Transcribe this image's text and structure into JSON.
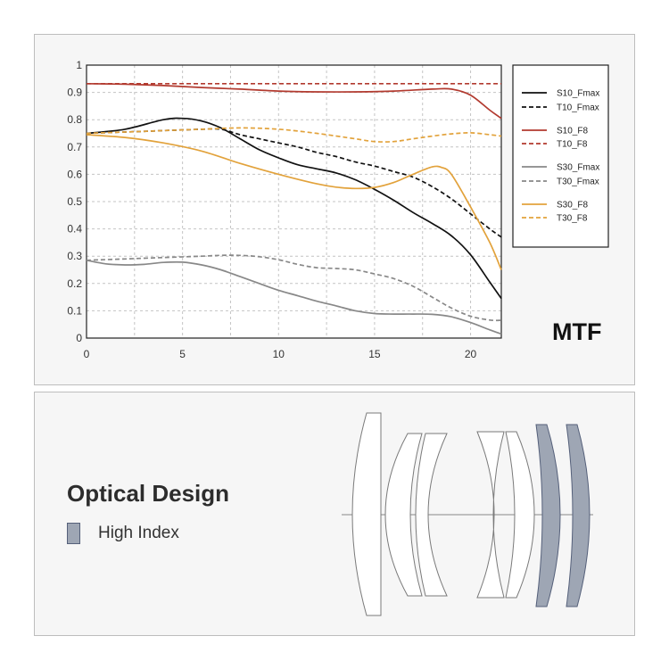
{
  "chart_data": {
    "type": "line",
    "title": "MTF",
    "xlabel": "",
    "ylabel": "",
    "xlim": [
      0,
      21.6
    ],
    "ylim": [
      0,
      1
    ],
    "x_ticks": [
      "0",
      "5",
      "10",
      "15",
      "20"
    ],
    "y_ticks": [
      "0",
      "0.1",
      "0.2",
      "0.3",
      "0.4",
      "0.5",
      "0.6",
      "0.7",
      "0.8",
      "0.9",
      "1"
    ],
    "grid": true,
    "legend_position": "top-right",
    "series": [
      {
        "name": "S10_Fmax",
        "color": "#111111",
        "dash": false,
        "points": [
          [
            0,
            0.75
          ],
          [
            2,
            0.765
          ],
          [
            4,
            0.8
          ],
          [
            5,
            0.805
          ],
          [
            6,
            0.795
          ],
          [
            7,
            0.77
          ],
          [
            8,
            0.73
          ],
          [
            9,
            0.69
          ],
          [
            10,
            0.66
          ],
          [
            11,
            0.635
          ],
          [
            12,
            0.62
          ],
          [
            13,
            0.605
          ],
          [
            14,
            0.58
          ],
          [
            15,
            0.545
          ],
          [
            16,
            0.505
          ],
          [
            17,
            0.46
          ],
          [
            18,
            0.42
          ],
          [
            19,
            0.375
          ],
          [
            20,
            0.305
          ],
          [
            21,
            0.205
          ],
          [
            21.6,
            0.145
          ]
        ]
      },
      {
        "name": "T10_Fmax",
        "color": "#111111",
        "dash": true,
        "points": [
          [
            0,
            0.75
          ],
          [
            2,
            0.755
          ],
          [
            4,
            0.76
          ],
          [
            6,
            0.765
          ],
          [
            7,
            0.765
          ],
          [
            8,
            0.745
          ],
          [
            9,
            0.73
          ],
          [
            10,
            0.715
          ],
          [
            11,
            0.7
          ],
          [
            12,
            0.68
          ],
          [
            13,
            0.665
          ],
          [
            14,
            0.645
          ],
          [
            15,
            0.63
          ],
          [
            16,
            0.61
          ],
          [
            17,
            0.59
          ],
          [
            18,
            0.555
          ],
          [
            19,
            0.51
          ],
          [
            20,
            0.455
          ],
          [
            21,
            0.4
          ],
          [
            21.6,
            0.37
          ]
        ]
      },
      {
        "name": "S10_F8",
        "color": "#b23a2f",
        "dash": false,
        "points": [
          [
            0,
            0.932
          ],
          [
            2,
            0.93
          ],
          [
            4,
            0.925
          ],
          [
            6,
            0.918
          ],
          [
            8,
            0.912
          ],
          [
            10,
            0.905
          ],
          [
            12,
            0.902
          ],
          [
            14,
            0.902
          ],
          [
            16,
            0.905
          ],
          [
            18,
            0.912
          ],
          [
            19,
            0.912
          ],
          [
            20,
            0.89
          ],
          [
            21,
            0.835
          ],
          [
            21.6,
            0.805
          ]
        ]
      },
      {
        "name": "T10_F8",
        "color": "#b23a2f",
        "dash": true,
        "points": [
          [
            0,
            0.932
          ],
          [
            5,
            0.932
          ],
          [
            10,
            0.932
          ],
          [
            15,
            0.932
          ],
          [
            20,
            0.932
          ],
          [
            21.6,
            0.932
          ]
        ]
      },
      {
        "name": "S30_Fmax",
        "color": "#888888",
        "dash": false,
        "points": [
          [
            0,
            0.285
          ],
          [
            1,
            0.272
          ],
          [
            2,
            0.268
          ],
          [
            3,
            0.27
          ],
          [
            4,
            0.277
          ],
          [
            5,
            0.278
          ],
          [
            6,
            0.268
          ],
          [
            7,
            0.25
          ],
          [
            8,
            0.225
          ],
          [
            9,
            0.2
          ],
          [
            10,
            0.175
          ],
          [
            11,
            0.155
          ],
          [
            12,
            0.135
          ],
          [
            13,
            0.118
          ],
          [
            14,
            0.1
          ],
          [
            15,
            0.09
          ],
          [
            16,
            0.088
          ],
          [
            17,
            0.088
          ],
          [
            18,
            0.087
          ],
          [
            19,
            0.078
          ],
          [
            20,
            0.057
          ],
          [
            21,
            0.03
          ],
          [
            21.6,
            0.015
          ]
        ]
      },
      {
        "name": "T30_Fmax",
        "color": "#888888",
        "dash": true,
        "points": [
          [
            0,
            0.285
          ],
          [
            2,
            0.29
          ],
          [
            4,
            0.295
          ],
          [
            6,
            0.3
          ],
          [
            7,
            0.303
          ],
          [
            8,
            0.303
          ],
          [
            9,
            0.298
          ],
          [
            10,
            0.287
          ],
          [
            11,
            0.27
          ],
          [
            12,
            0.258
          ],
          [
            13,
            0.255
          ],
          [
            14,
            0.25
          ],
          [
            15,
            0.235
          ],
          [
            16,
            0.218
          ],
          [
            17,
            0.19
          ],
          [
            18,
            0.15
          ],
          [
            19,
            0.11
          ],
          [
            20,
            0.08
          ],
          [
            21,
            0.066
          ],
          [
            21.6,
            0.065
          ]
        ]
      },
      {
        "name": "S30_F8",
        "color": "#e2a23b",
        "dash": false,
        "points": [
          [
            0,
            0.745
          ],
          [
            2,
            0.735
          ],
          [
            4,
            0.715
          ],
          [
            6,
            0.685
          ],
          [
            8,
            0.64
          ],
          [
            10,
            0.6
          ],
          [
            12,
            0.565
          ],
          [
            13,
            0.553
          ],
          [
            14,
            0.548
          ],
          [
            15,
            0.552
          ],
          [
            16,
            0.57
          ],
          [
            17,
            0.6
          ],
          [
            18,
            0.627
          ],
          [
            18.5,
            0.625
          ],
          [
            19,
            0.6
          ],
          [
            20,
            0.48
          ],
          [
            21,
            0.35
          ],
          [
            21.6,
            0.25
          ]
        ]
      },
      {
        "name": "T30_F8",
        "color": "#e2a23b",
        "dash": true,
        "points": [
          [
            0,
            0.75
          ],
          [
            2,
            0.755
          ],
          [
            4,
            0.76
          ],
          [
            6,
            0.765
          ],
          [
            8,
            0.77
          ],
          [
            10,
            0.765
          ],
          [
            12,
            0.75
          ],
          [
            14,
            0.73
          ],
          [
            15,
            0.72
          ],
          [
            16,
            0.72
          ],
          [
            17,
            0.73
          ],
          [
            18,
            0.74
          ],
          [
            19,
            0.748
          ],
          [
            20,
            0.752
          ],
          [
            21,
            0.745
          ],
          [
            21.6,
            0.74
          ]
        ]
      }
    ]
  },
  "optical_design": {
    "title": "Optical Design",
    "legend_label": "High Index",
    "high_index_color": "#9ea6b4"
  }
}
